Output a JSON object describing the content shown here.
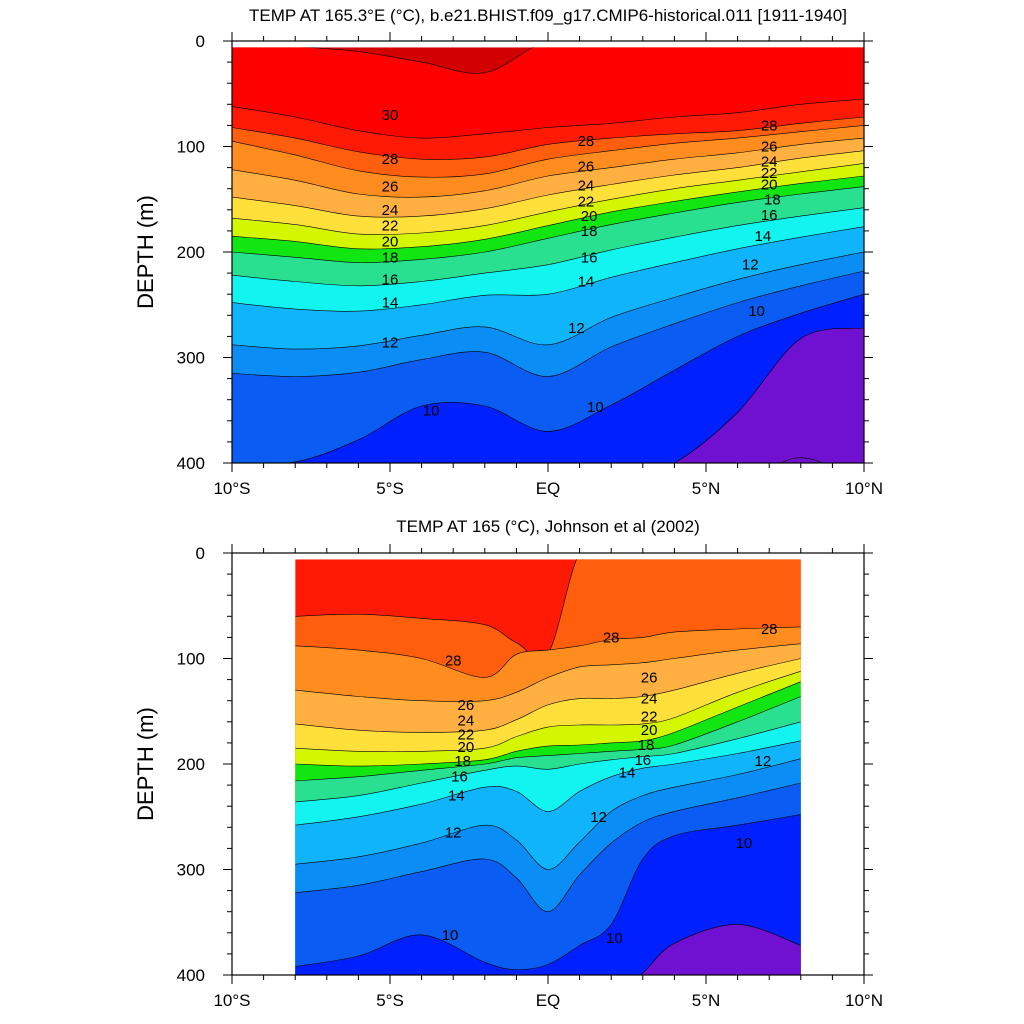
{
  "chart_data": [
    {
      "type": "heatmap",
      "title": "TEMP AT 165.3°E (°C), b.e21.BHIST.f09_g17.CMIP6-historical.011 [1911-1940]",
      "xlabel": "",
      "ylabel": "DEPTH (m)",
      "xlim": [
        -10,
        10
      ],
      "ylim": [
        400,
        0
      ],
      "x_ticks": [
        {
          "value": -10,
          "label": "10°S"
        },
        {
          "value": -5,
          "label": "5°S"
        },
        {
          "value": 0,
          "label": "EQ"
        },
        {
          "value": 5,
          "label": "5°N"
        },
        {
          "value": 10,
          "label": "10°N"
        }
      ],
      "y_ticks": [
        {
          "value": 0,
          "label": "0"
        },
        {
          "value": 100,
          "label": "100"
        },
        {
          "value": 200,
          "label": "200"
        },
        {
          "value": 300,
          "label": "300"
        },
        {
          "value": 400,
          "label": "400"
        }
      ],
      "data_extent": [
        -10,
        10
      ],
      "contour_depths": {
        "x": [
          -10,
          -8,
          -6,
          -4,
          -2,
          0,
          2,
          4,
          6,
          8,
          10
        ],
        "levels": {
          "31": [
            null,
            5,
            10,
            20,
            30,
            null,
            null,
            null,
            null,
            null,
            null
          ],
          "30": [
            62,
            72,
            85,
            92,
            88,
            82,
            78,
            72,
            68,
            60,
            55
          ],
          "29": [
            82,
            92,
            105,
            112,
            110,
            98,
            92,
            88,
            85,
            78,
            72
          ],
          "28": [
            95,
            108,
            123,
            129,
            126,
            112,
            104,
            97,
            92,
            86,
            80
          ],
          "26": [
            122,
            132,
            145,
            148,
            142,
            128,
            120,
            112,
            106,
            98,
            92
          ],
          "24": [
            148,
            156,
            166,
            166,
            159,
            146,
            136,
            127,
            120,
            111,
            104
          ],
          "22": [
            168,
            174,
            183,
            182,
            175,
            162,
            150,
            140,
            132,
            124,
            116
          ],
          "20": [
            185,
            190,
            197,
            195,
            188,
            175,
            162,
            152,
            143,
            135,
            128
          ],
          "18": [
            200,
            205,
            210,
            207,
            200,
            187,
            174,
            163,
            153,
            145,
            138
          ],
          "16": [
            222,
            228,
            232,
            228,
            220,
            212,
            198,
            186,
            175,
            166,
            158
          ],
          "14": [
            248,
            254,
            256,
            250,
            241,
            240,
            224,
            210,
            197,
            186,
            176
          ],
          "12": [
            288,
            292,
            289,
            279,
            271,
            288,
            262,
            243,
            226,
            212,
            200
          ],
          "11": [
            315,
            318,
            314,
            302,
            295,
            318,
            290,
            268,
            248,
            232,
            218
          ],
          "10": [
            400,
            399,
            378,
            346,
            346,
            370,
            345,
            312,
            280,
            258,
            240
          ],
          "9": [
            null,
            null,
            null,
            null,
            null,
            null,
            null,
            400,
            352,
            282,
            272
          ],
          "8": [
            null,
            null,
            null,
            null,
            null,
            null,
            null,
            null,
            null,
            395,
            null
          ]
        }
      },
      "contour_labels": [
        {
          "text": "30",
          "x": -5,
          "y": 70
        },
        {
          "text": "28",
          "x": -5,
          "y": 112
        },
        {
          "text": "26",
          "x": -5,
          "y": 138
        },
        {
          "text": "24",
          "x": -5,
          "y": 160
        },
        {
          "text": "22",
          "x": -5,
          "y": 175
        },
        {
          "text": "20",
          "x": -5,
          "y": 190
        },
        {
          "text": "18",
          "x": -5,
          "y": 205
        },
        {
          "text": "16",
          "x": -5,
          "y": 226
        },
        {
          "text": "14",
          "x": -5,
          "y": 248
        },
        {
          "text": "12",
          "x": -5,
          "y": 286
        },
        {
          "text": "10",
          "x": -3.7,
          "y": 350
        },
        {
          "text": "28",
          "x": 1.2,
          "y": 95
        },
        {
          "text": "26",
          "x": 1.2,
          "y": 119
        },
        {
          "text": "24",
          "x": 1.2,
          "y": 137
        },
        {
          "text": "22",
          "x": 1.2,
          "y": 152
        },
        {
          "text": "20",
          "x": 1.3,
          "y": 166
        },
        {
          "text": "18",
          "x": 1.3,
          "y": 180
        },
        {
          "text": "16",
          "x": 1.3,
          "y": 205
        },
        {
          "text": "14",
          "x": 1.2,
          "y": 228
        },
        {
          "text": "12",
          "x": 0.9,
          "y": 272
        },
        {
          "text": "10",
          "x": 1.5,
          "y": 347
        },
        {
          "text": "28",
          "x": 7,
          "y": 80
        },
        {
          "text": "26",
          "x": 7,
          "y": 100
        },
        {
          "text": "24",
          "x": 7,
          "y": 114
        },
        {
          "text": "22",
          "x": 7,
          "y": 125
        },
        {
          "text": "20",
          "x": 7,
          "y": 136
        },
        {
          "text": "18",
          "x": 7.1,
          "y": 150
        },
        {
          "text": "16",
          "x": 7,
          "y": 165
        },
        {
          "text": "14",
          "x": 6.8,
          "y": 185
        },
        {
          "text": "12",
          "x": 6.4,
          "y": 212
        },
        {
          "text": "10",
          "x": 6.6,
          "y": 256
        }
      ]
    },
    {
      "type": "heatmap",
      "title": "TEMP AT 165 (°C), Johnson et al (2002)",
      "xlabel": "",
      "ylabel": "DEPTH (m)",
      "xlim": [
        -10,
        10
      ],
      "ylim": [
        400,
        0
      ],
      "x_ticks": [
        {
          "value": -10,
          "label": "10°S"
        },
        {
          "value": -5,
          "label": "5°S"
        },
        {
          "value": 0,
          "label": "EQ"
        },
        {
          "value": 5,
          "label": "5°N"
        },
        {
          "value": 10,
          "label": "10°N"
        }
      ],
      "y_ticks": [
        {
          "value": 0,
          "label": "0"
        },
        {
          "value": 100,
          "label": "100"
        },
        {
          "value": 200,
          "label": "200"
        },
        {
          "value": 300,
          "label": "300"
        },
        {
          "value": 400,
          "label": "400"
        }
      ],
      "data_extent": [
        -8,
        8
      ],
      "contour_depths": {
        "x": [
          -8,
          -6,
          -4,
          -2,
          -1,
          0,
          1,
          2,
          3,
          4,
          6,
          8
        ],
        "levels": {
          "29": [
            60,
            58,
            62,
            68,
            85,
            95,
            null,
            null,
            null,
            null,
            null,
            null
          ],
          "28": [
            88,
            92,
            100,
            118,
            96,
            92,
            88,
            82,
            80,
            75,
            72,
            70
          ],
          "26": [
            130,
            136,
            140,
            140,
            132,
            118,
            108,
            106,
            104,
            100,
            92,
            86
          ],
          "24": [
            162,
            168,
            170,
            168,
            158,
            144,
            138,
            138,
            136,
            130,
            114,
            100
          ],
          "22": [
            185,
            188,
            188,
            185,
            174,
            165,
            163,
            163,
            162,
            156,
            132,
            112
          ],
          "20": [
            200,
            202,
            200,
            196,
            188,
            183,
            182,
            180,
            178,
            170,
            146,
            122
          ],
          "18": [
            216,
            212,
            206,
            200,
            194,
            192,
            190,
            188,
            186,
            182,
            160,
            136
          ],
          "16": [
            236,
            230,
            218,
            206,
            202,
            205,
            200,
            196,
            193,
            190,
            176,
            160
          ],
          "14": [
            258,
            250,
            238,
            222,
            226,
            245,
            226,
            212,
            204,
            200,
            190,
            178
          ],
          "12": [
            295,
            288,
            275,
            258,
            272,
            300,
            274,
            245,
            230,
            222,
            210,
            195
          ],
          "11": [
            322,
            315,
            302,
            290,
            308,
            340,
            305,
            275,
            255,
            245,
            232,
            218
          ],
          "10": [
            392,
            382,
            362,
            388,
            395,
            390,
            372,
            352,
            290,
            268,
            258,
            248
          ],
          "9": [
            null,
            null,
            null,
            null,
            null,
            null,
            null,
            null,
            398,
            370,
            352,
            372
          ]
        }
      },
      "contour_labels": [
        {
          "text": "28",
          "x": -3,
          "y": 102
        },
        {
          "text": "26",
          "x": -2.6,
          "y": 144
        },
        {
          "text": "24",
          "x": -2.6,
          "y": 159
        },
        {
          "text": "22",
          "x": -2.6,
          "y": 172
        },
        {
          "text": "20",
          "x": -2.6,
          "y": 184
        },
        {
          "text": "18",
          "x": -2.7,
          "y": 197
        },
        {
          "text": "16",
          "x": -2.8,
          "y": 212
        },
        {
          "text": "14",
          "x": -2.9,
          "y": 230
        },
        {
          "text": "12",
          "x": -3,
          "y": 265
        },
        {
          "text": "10",
          "x": -3.1,
          "y": 362
        },
        {
          "text": "28",
          "x": 2,
          "y": 80
        },
        {
          "text": "26",
          "x": 3.2,
          "y": 118
        },
        {
          "text": "24",
          "x": 3.2,
          "y": 138
        },
        {
          "text": "22",
          "x": 3.2,
          "y": 155
        },
        {
          "text": "20",
          "x": 3.2,
          "y": 168
        },
        {
          "text": "18",
          "x": 3.1,
          "y": 182
        },
        {
          "text": "16",
          "x": 3,
          "y": 196
        },
        {
          "text": "14",
          "x": 2.5,
          "y": 208
        },
        {
          "text": "12",
          "x": 1.6,
          "y": 250
        },
        {
          "text": "10",
          "x": 2.1,
          "y": 365
        },
        {
          "text": "28",
          "x": 7,
          "y": 72
        },
        {
          "text": "12",
          "x": 6.8,
          "y": 197
        },
        {
          "text": "10",
          "x": 6.2,
          "y": 275
        }
      ]
    }
  ]
}
